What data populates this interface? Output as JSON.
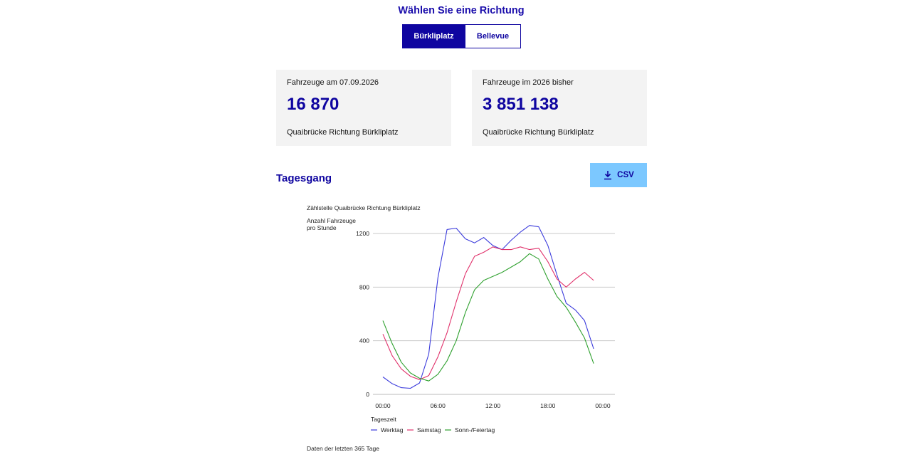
{
  "direction": {
    "heading": "Wählen Sie eine Richtung",
    "options": [
      "Bürkliplatz",
      "Bellevue"
    ],
    "selected": "Bürkliplatz"
  },
  "cards": [
    {
      "label": "Fahrzeuge am 07.09.2026",
      "value": "16 870",
      "sub": "Quaibrücke Richtung Bürkliplatz"
    },
    {
      "label": "Fahrzeuge im 2026 bisher",
      "value": "3 851 138",
      "sub": "Quaibrücke Richtung Bürkliplatz"
    }
  ],
  "section": {
    "title": "Tagesgang",
    "csv_label": "CSV"
  },
  "colors": {
    "accent": "#0f05a0",
    "csv_bg": "#7cc8ff",
    "werktag": "#3c3cdc",
    "samstag": "#e0306a",
    "sonntag": "#2ea02e"
  },
  "chart_data": {
    "type": "line",
    "title": "Zählstelle Quaibrücke Richtung Bürkliplatz",
    "ylabel": "Anzahl Fahrzeuge pro Stunde",
    "xlabel": "Tageszeit",
    "ylim": [
      0,
      1300
    ],
    "yticks": [
      0,
      400,
      800,
      1200
    ],
    "xlim": [
      0,
      24
    ],
    "xticks": [
      0,
      6,
      12,
      18,
      24
    ],
    "xtick_labels": [
      "00:00",
      "06:00",
      "12:00",
      "18:00",
      "00:00"
    ],
    "grid": true,
    "legend_position": "bottom",
    "x": [
      0,
      1,
      2,
      3,
      4,
      5,
      6,
      7,
      8,
      9,
      10,
      11,
      12,
      13,
      14,
      15,
      16,
      17,
      18,
      19,
      20,
      21,
      22,
      23
    ],
    "series": [
      {
        "name": "Werktag",
        "color": "#3c3cdc",
        "values": [
          130,
          80,
          50,
          45,
          85,
          300,
          870,
          1230,
          1240,
          1160,
          1130,
          1170,
          1110,
          1080,
          1150,
          1210,
          1260,
          1250,
          1110,
          890,
          680,
          630,
          550,
          340
        ]
      },
      {
        "name": "Samstag",
        "color": "#e0306a",
        "values": [
          450,
          290,
          190,
          135,
          110,
          140,
          280,
          460,
          690,
          900,
          1030,
          1060,
          1100,
          1080,
          1080,
          1100,
          1080,
          1090,
          990,
          860,
          800,
          860,
          910,
          850
        ]
      },
      {
        "name": "Sonn-/Feiertag",
        "color": "#2ea02e",
        "values": [
          550,
          380,
          240,
          160,
          120,
          100,
          150,
          250,
          400,
          610,
          780,
          850,
          880,
          910,
          950,
          990,
          1050,
          1010,
          860,
          730,
          650,
          540,
          420,
          230
        ]
      }
    ]
  },
  "footer": "Daten der letzten 365 Tage"
}
